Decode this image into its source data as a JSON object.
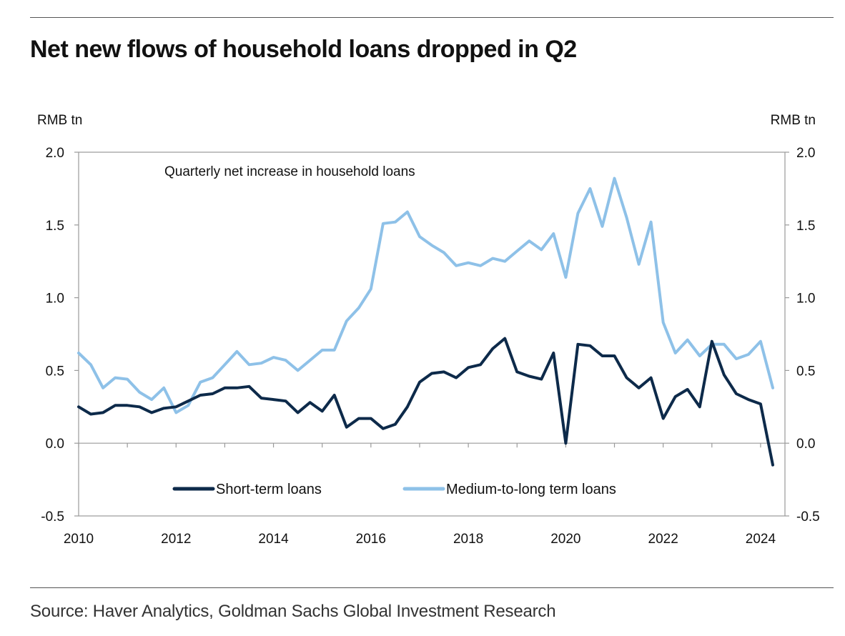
{
  "title": "Net new flows of household loans dropped in Q2",
  "source": "Source: Haver Analytics, Goldman Sachs Global Investment Research",
  "chart_data": {
    "type": "line",
    "annotation": "Quarterly net increase in household loans",
    "y_unit_left": "RMB tn",
    "y_unit_right": "RMB tn",
    "ylim": [
      -0.5,
      2.0
    ],
    "yticks": [
      -0.5,
      0.0,
      0.5,
      1.0,
      1.5,
      2.0
    ],
    "ytick_labels": [
      "-0.5",
      "0.0",
      "0.5",
      "1.0",
      "1.5",
      "2.0"
    ],
    "xlim": [
      2010,
      2024.5
    ],
    "xticks": [
      2010,
      2012,
      2014,
      2016,
      2018,
      2020,
      2022,
      2024
    ],
    "xtick_labels": [
      "2010",
      "2012",
      "2014",
      "2016",
      "2018",
      "2020",
      "2022",
      "2024"
    ],
    "grid": false,
    "legend_position": "bottom-center",
    "x": [
      2010.0,
      2010.25,
      2010.5,
      2010.75,
      2011.0,
      2011.25,
      2011.5,
      2011.75,
      2012.0,
      2012.25,
      2012.5,
      2012.75,
      2013.0,
      2013.25,
      2013.5,
      2013.75,
      2014.0,
      2014.25,
      2014.5,
      2014.75,
      2015.0,
      2015.25,
      2015.5,
      2015.75,
      2016.0,
      2016.25,
      2016.5,
      2016.75,
      2017.0,
      2017.25,
      2017.5,
      2017.75,
      2018.0,
      2018.25,
      2018.5,
      2018.75,
      2019.0,
      2019.25,
      2019.5,
      2019.75,
      2020.0,
      2020.25,
      2020.5,
      2020.75,
      2021.0,
      2021.25,
      2021.5,
      2021.75,
      2022.0,
      2022.25,
      2022.5,
      2022.75,
      2023.0,
      2023.25,
      2023.5,
      2023.75,
      2024.0,
      2024.25
    ],
    "series": [
      {
        "name": "Short-term loans",
        "color": "#0d2a4a",
        "values": [
          0.25,
          0.2,
          0.21,
          0.26,
          0.26,
          0.25,
          0.21,
          0.24,
          0.25,
          0.29,
          0.33,
          0.34,
          0.38,
          0.38,
          0.39,
          0.31,
          0.3,
          0.29,
          0.21,
          0.28,
          0.22,
          0.33,
          0.11,
          0.17,
          0.17,
          0.1,
          0.13,
          0.25,
          0.42,
          0.48,
          0.49,
          0.45,
          0.52,
          0.54,
          0.65,
          0.72,
          0.49,
          0.46,
          0.44,
          0.62,
          0.0,
          0.68,
          0.67,
          0.6,
          0.6,
          0.45,
          0.38,
          0.45,
          0.17,
          0.32,
          0.37,
          0.25,
          0.7,
          0.47,
          0.34,
          0.3,
          0.27,
          -0.15
        ]
      },
      {
        "name": "Medium-to-long term loans",
        "color": "#8ec1e8",
        "values": [
          0.62,
          0.54,
          0.38,
          0.45,
          0.44,
          0.35,
          0.3,
          0.38,
          0.21,
          0.26,
          0.42,
          0.45,
          0.54,
          0.63,
          0.54,
          0.55,
          0.59,
          0.57,
          0.5,
          0.57,
          0.64,
          0.64,
          0.84,
          0.93,
          1.06,
          1.51,
          1.52,
          1.59,
          1.42,
          1.36,
          1.31,
          1.22,
          1.24,
          1.22,
          1.27,
          1.25,
          1.32,
          1.39,
          1.33,
          1.44,
          1.14,
          1.58,
          1.75,
          1.49,
          1.82,
          1.55,
          1.23,
          1.52,
          0.83,
          0.62,
          0.71,
          0.6,
          0.68,
          0.68,
          0.58,
          0.61,
          0.7,
          0.38
        ]
      }
    ]
  }
}
